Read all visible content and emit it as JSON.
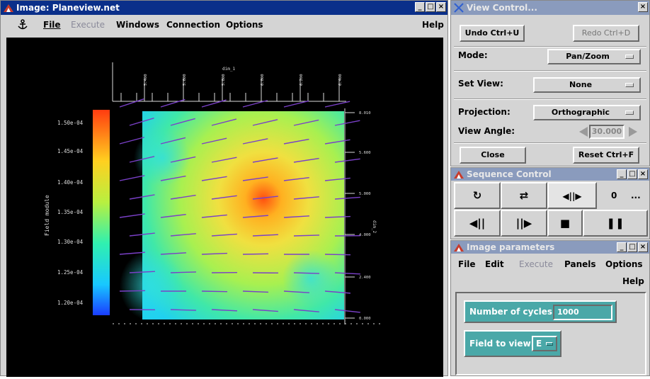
{
  "image_window": {
    "title": "Image: Planeview.net",
    "menu": {
      "file": "File",
      "execute": "Execute",
      "windows": "Windows",
      "connection": "Connection",
      "options": "Options",
      "help": "Help"
    },
    "colorbar": {
      "label": "Field module",
      "ticks": [
        "1.50e-04",
        "1.45e-04",
        "1.40e-04",
        "1.35e-04",
        "1.30e-04",
        "1.25e-04",
        "1.20e-04"
      ]
    },
    "top_axis": {
      "title": "dim_1",
      "ticks": [
        "5.400",
        "5.600",
        "5.800",
        "6.000",
        "6.200",
        "6.400"
      ]
    },
    "right_axis": {
      "title": "dim_2",
      "ticks": [
        "8.010",
        "5.600",
        "5.000",
        "4.000",
        "2.400",
        "0.000"
      ]
    }
  },
  "view_control": {
    "title": "View Control...",
    "undo": "Undo  Ctrl+U",
    "redo": "Redo  Ctrl+D",
    "mode_label": "Mode:",
    "mode_value": "Pan/Zoom",
    "set_view_label": "Set View:",
    "set_view_value": "None",
    "projection_label": "Projection:",
    "projection_value": "Orthographic",
    "view_angle_label": "View Angle:",
    "view_angle_value": "30.000",
    "close": "Close",
    "reset": "Reset  Ctrl+F"
  },
  "sequence_control": {
    "title": "Sequence Control",
    "counter": "0",
    "ellipsis": "..."
  },
  "image_parameters": {
    "title": "Image parameters",
    "menu": {
      "file": "File",
      "edit": "Edit",
      "execute": "Execute",
      "panels": "Panels",
      "options": "Options",
      "help": "Help"
    },
    "cycles_label": "Number of cycles:",
    "cycles_value": "1000",
    "field_label": "Field to view:",
    "field_value": "E"
  }
}
